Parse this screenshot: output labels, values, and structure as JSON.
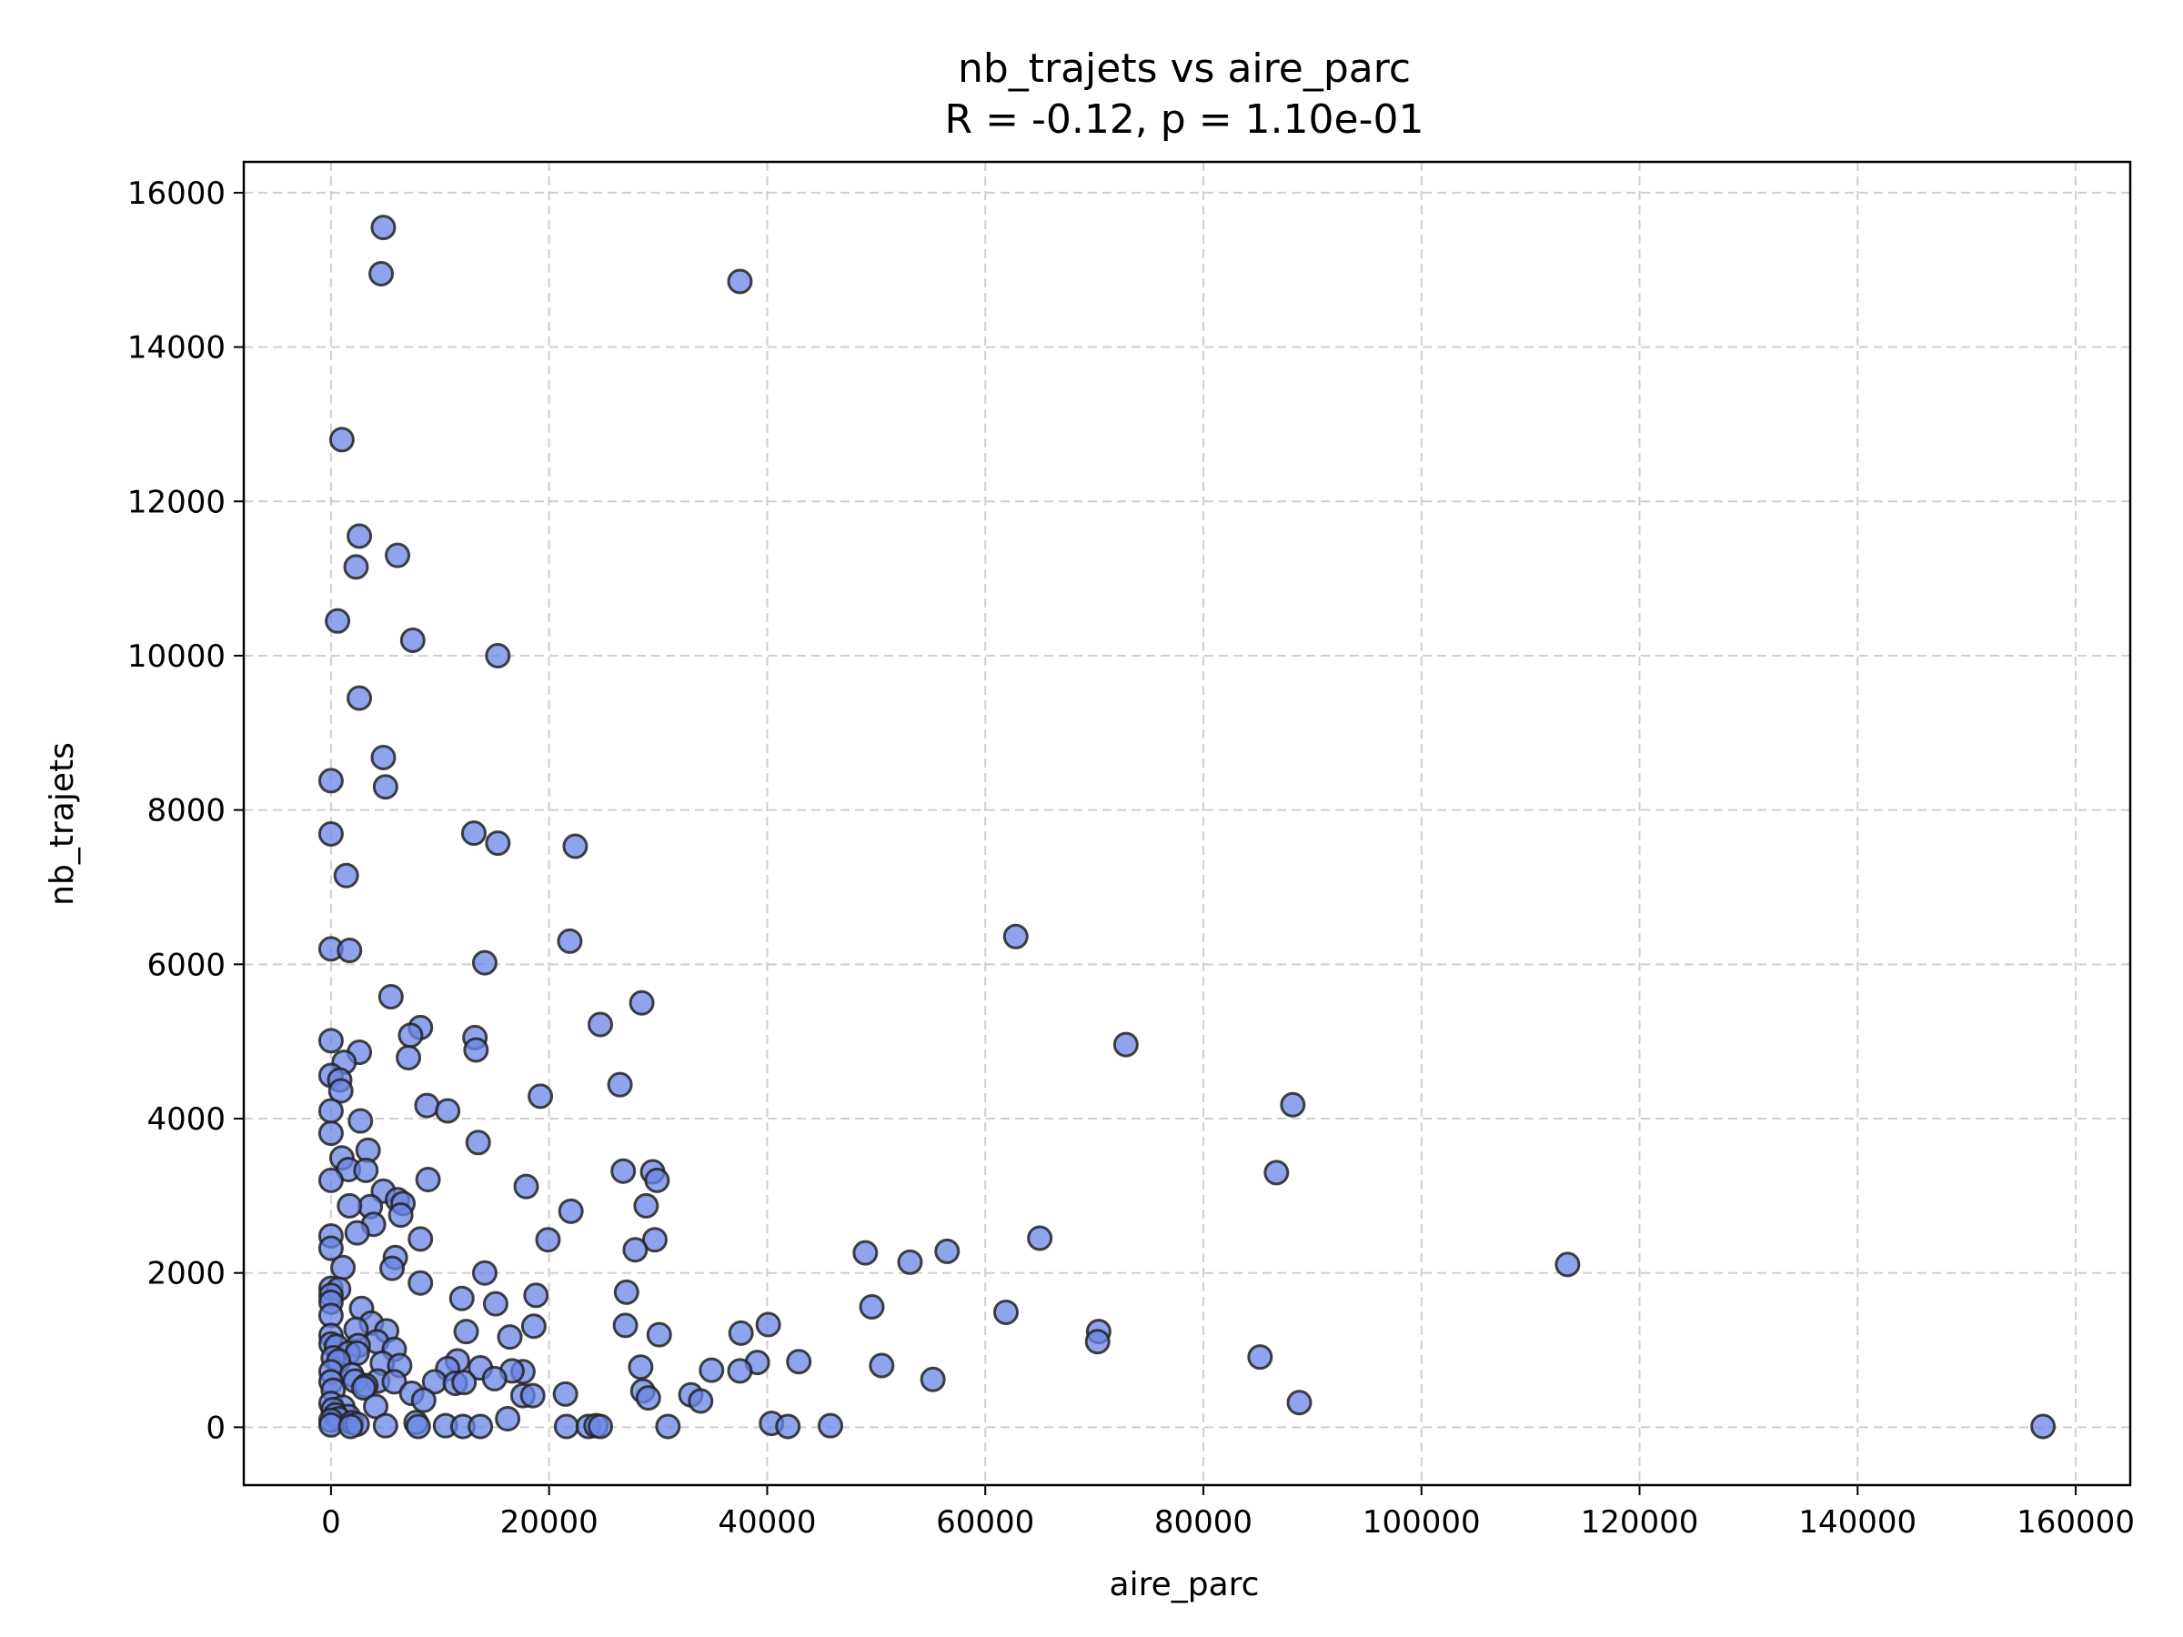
{
  "chart_data": {
    "type": "scatter",
    "title": "nb_trajets vs aire_parc",
    "subtitle": "R = -0.12, p = 1.10e-01",
    "xlabel": "aire_parc",
    "ylabel": "nb_trajets",
    "xlim": [
      -8000,
      165000
    ],
    "ylim": [
      -750,
      16400
    ],
    "xticks": [
      0,
      20000,
      40000,
      60000,
      80000,
      100000,
      120000,
      140000,
      160000
    ],
    "xtick_labels": [
      "0",
      "20000",
      "40000",
      "60000",
      "80000",
      "100000",
      "120000",
      "140000",
      "160000"
    ],
    "yticks": [
      0,
      2000,
      4000,
      6000,
      8000,
      10000,
      12000,
      14000,
      16000
    ],
    "ytick_labels": [
      "0",
      "2000",
      "4000",
      "6000",
      "8000",
      "10000",
      "12000",
      "14000",
      "16000"
    ],
    "grid": true,
    "marker_color": "#6a85e6",
    "marker_edge_color": "#222222",
    "points": [
      [
        4800,
        15550
      ],
      [
        4600,
        14950
      ],
      [
        37500,
        14850
      ],
      [
        1000,
        12800
      ],
      [
        2600,
        11550
      ],
      [
        6100,
        11300
      ],
      [
        2300,
        11150
      ],
      [
        600,
        10450
      ],
      [
        7500,
        10200
      ],
      [
        15300,
        10000
      ],
      [
        2600,
        9450
      ],
      [
        4800,
        8680
      ],
      [
        5000,
        8300
      ],
      [
        0,
        8380
      ],
      [
        0,
        7690
      ],
      [
        13100,
        7700
      ],
      [
        15300,
        7570
      ],
      [
        22400,
        7530
      ],
      [
        1400,
        7150
      ],
      [
        0,
        6200
      ],
      [
        1700,
        6180
      ],
      [
        21900,
        6300
      ],
      [
        14100,
        6020
      ],
      [
        62800,
        6360
      ],
      [
        5500,
        5580
      ],
      [
        28500,
        5500
      ],
      [
        24700,
        5220
      ],
      [
        8200,
        5180
      ],
      [
        7300,
        5080
      ],
      [
        13200,
        5050
      ],
      [
        0,
        5010
      ],
      [
        72900,
        4960
      ],
      [
        13300,
        4890
      ],
      [
        2600,
        4860
      ],
      [
        7100,
        4790
      ],
      [
        1200,
        4730
      ],
      [
        0,
        4560
      ],
      [
        800,
        4500
      ],
      [
        900,
        4360
      ],
      [
        26500,
        4440
      ],
      [
        19200,
        4290
      ],
      [
        88200,
        4180
      ],
      [
        8800,
        4170
      ],
      [
        10700,
        4100
      ],
      [
        0,
        4100
      ],
      [
        2700,
        3970
      ],
      [
        0,
        3810
      ],
      [
        13500,
        3690
      ],
      [
        3400,
        3590
      ],
      [
        1000,
        3490
      ],
      [
        1600,
        3340
      ],
      [
        3200,
        3330
      ],
      [
        26800,
        3320
      ],
      [
        29500,
        3310
      ],
      [
        86700,
        3300
      ],
      [
        8900,
        3210
      ],
      [
        29900,
        3200
      ],
      [
        0,
        3200
      ],
      [
        17900,
        3120
      ],
      [
        4800,
        3060
      ],
      [
        6100,
        2950
      ],
      [
        6600,
        2900
      ],
      [
        3600,
        2860
      ],
      [
        1700,
        2870
      ],
      [
        28900,
        2870
      ],
      [
        22000,
        2800
      ],
      [
        6400,
        2750
      ],
      [
        3900,
        2630
      ],
      [
        2400,
        2520
      ],
      [
        0,
        2480
      ],
      [
        65000,
        2450
      ],
      [
        8200,
        2440
      ],
      [
        29700,
        2430
      ],
      [
        19900,
        2430
      ],
      [
        0,
        2320
      ],
      [
        27900,
        2300
      ],
      [
        56500,
        2280
      ],
      [
        49000,
        2260
      ],
      [
        5900,
        2200
      ],
      [
        113400,
        2110
      ],
      [
        53100,
        2140
      ],
      [
        1100,
        2070
      ],
      [
        5600,
        2060
      ],
      [
        14100,
        2000
      ],
      [
        8200,
        1870
      ],
      [
        0,
        1800
      ],
      [
        700,
        1790
      ],
      [
        0,
        1710
      ],
      [
        27100,
        1750
      ],
      [
        18800,
        1710
      ],
      [
        12000,
        1670
      ],
      [
        0,
        1620
      ],
      [
        15100,
        1600
      ],
      [
        49600,
        1560
      ],
      [
        2800,
        1540
      ],
      [
        61900,
        1490
      ],
      [
        0,
        1450
      ],
      [
        3700,
        1350
      ],
      [
        27000,
        1320
      ],
      [
        40100,
        1330
      ],
      [
        18600,
        1310
      ],
      [
        2300,
        1270
      ],
      [
        5100,
        1250
      ],
      [
        12400,
        1240
      ],
      [
        70400,
        1240
      ],
      [
        37600,
        1220
      ],
      [
        30100,
        1200
      ],
      [
        16400,
        1170
      ],
      [
        0,
        1190
      ],
      [
        70300,
        1110
      ],
      [
        0,
        1080
      ],
      [
        4200,
        1110
      ],
      [
        500,
        1050
      ],
      [
        2500,
        1060
      ],
      [
        5800,
        1010
      ],
      [
        1600,
        960
      ],
      [
        2400,
        960
      ],
      [
        200,
        900
      ],
      [
        85200,
        910
      ],
      [
        700,
        860
      ],
      [
        11600,
        860
      ],
      [
        39100,
        840
      ],
      [
        42900,
        850
      ],
      [
        4700,
        830
      ],
      [
        6300,
        800
      ],
      [
        50500,
        800
      ],
      [
        10700,
        760
      ],
      [
        13700,
        770
      ],
      [
        28400,
        780
      ],
      [
        17600,
        720
      ],
      [
        16600,
        730
      ],
      [
        0,
        720
      ],
      [
        34900,
        740
      ],
      [
        37500,
        730
      ],
      [
        1900,
        680
      ],
      [
        55200,
        620
      ],
      [
        15000,
        630
      ],
      [
        4300,
        600
      ],
      [
        5800,
        590
      ],
      [
        9500,
        590
      ],
      [
        2200,
        600
      ],
      [
        0,
        590
      ],
      [
        11400,
        570
      ],
      [
        12200,
        580
      ],
      [
        3200,
        540
      ],
      [
        3000,
        510
      ],
      [
        200,
        480
      ],
      [
        28600,
        470
      ],
      [
        7400,
        440
      ],
      [
        17600,
        410
      ],
      [
        21500,
        430
      ],
      [
        18500,
        410
      ],
      [
        29100,
        380
      ],
      [
        33000,
        420
      ],
      [
        33900,
        340
      ],
      [
        8500,
        350
      ],
      [
        0,
        310
      ],
      [
        88800,
        320
      ],
      [
        4100,
        270
      ],
      [
        1100,
        260
      ],
      [
        200,
        230
      ],
      [
        16200,
        110
      ],
      [
        1600,
        140
      ],
      [
        400,
        160
      ],
      [
        700,
        110
      ],
      [
        0,
        90
      ],
      [
        1900,
        60
      ],
      [
        2400,
        40
      ],
      [
        7800,
        60
      ],
      [
        0,
        30
      ],
      [
        5000,
        20
      ],
      [
        1800,
        10
      ],
      [
        10500,
        20
      ],
      [
        8000,
        10
      ],
      [
        12100,
        10
      ],
      [
        13700,
        10
      ],
      [
        21600,
        10
      ],
      [
        23600,
        10
      ],
      [
        24300,
        20
      ],
      [
        24700,
        10
      ],
      [
        30900,
        10
      ],
      [
        40400,
        50
      ],
      [
        41900,
        10
      ],
      [
        45800,
        20
      ],
      [
        157000,
        10
      ]
    ]
  }
}
